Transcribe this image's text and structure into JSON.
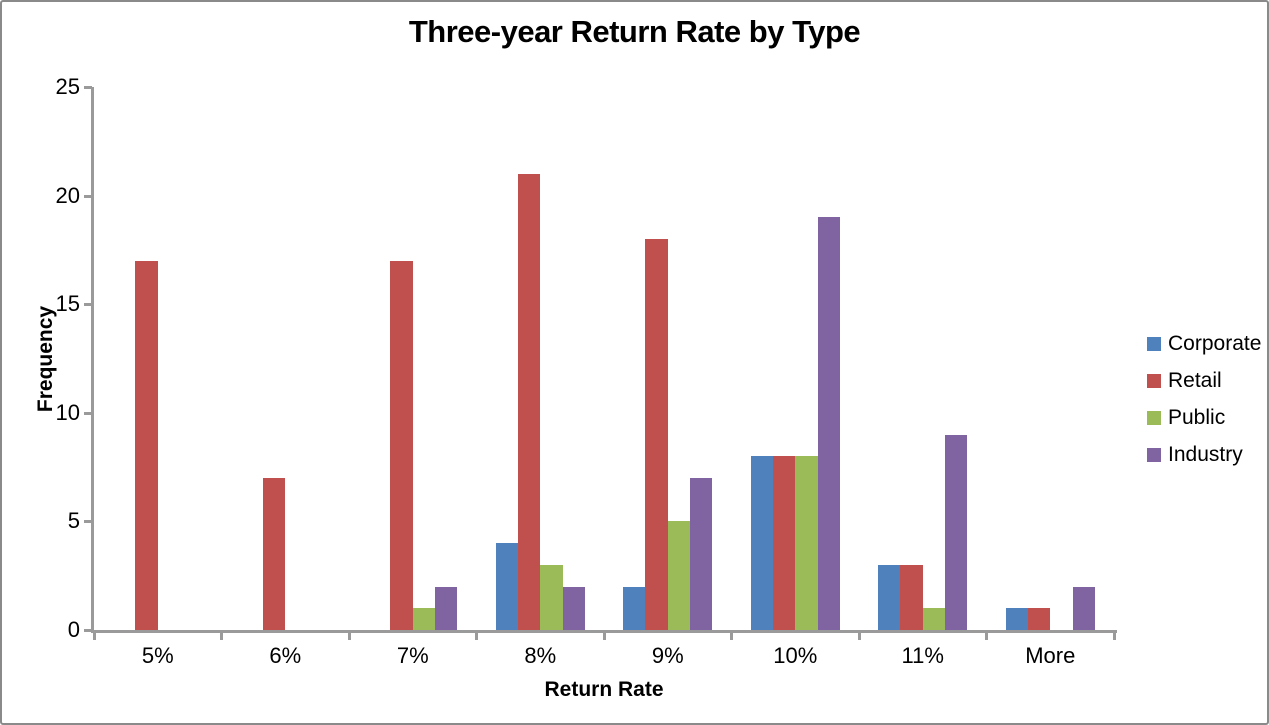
{
  "window": {
    "background": "#FFFFFF",
    "border_color": "#8A8A8A"
  },
  "chart_data": {
    "type": "bar",
    "title": "Three-year Return Rate by Type",
    "xlabel": "Return Rate",
    "ylabel": "Frequency",
    "categories": [
      "5%",
      "6%",
      "7%",
      "8%",
      "9%",
      "10%",
      "11%",
      "More"
    ],
    "series": [
      {
        "name": "Corporate",
        "color": "#4F81BD",
        "values": [
          0,
          0,
          0,
          4,
          2,
          8,
          3,
          1
        ]
      },
      {
        "name": "Retail",
        "color": "#C0504D",
        "values": [
          17,
          7,
          17,
          21,
          18,
          8,
          3,
          1
        ]
      },
      {
        "name": "Public",
        "color": "#9BBB59",
        "values": [
          0,
          0,
          1,
          3,
          5,
          8,
          1,
          0
        ]
      },
      {
        "name": "Industry",
        "color": "#8064A2",
        "values": [
          0,
          0,
          2,
          2,
          7,
          19,
          9,
          2
        ]
      }
    ],
    "ylim": [
      0,
      25
    ],
    "yticks": [
      0,
      5,
      10,
      15,
      20,
      25
    ],
    "grid": false,
    "legend_position": "right",
    "axis_color": "#9A9A9A",
    "text_color": "#000000"
  }
}
